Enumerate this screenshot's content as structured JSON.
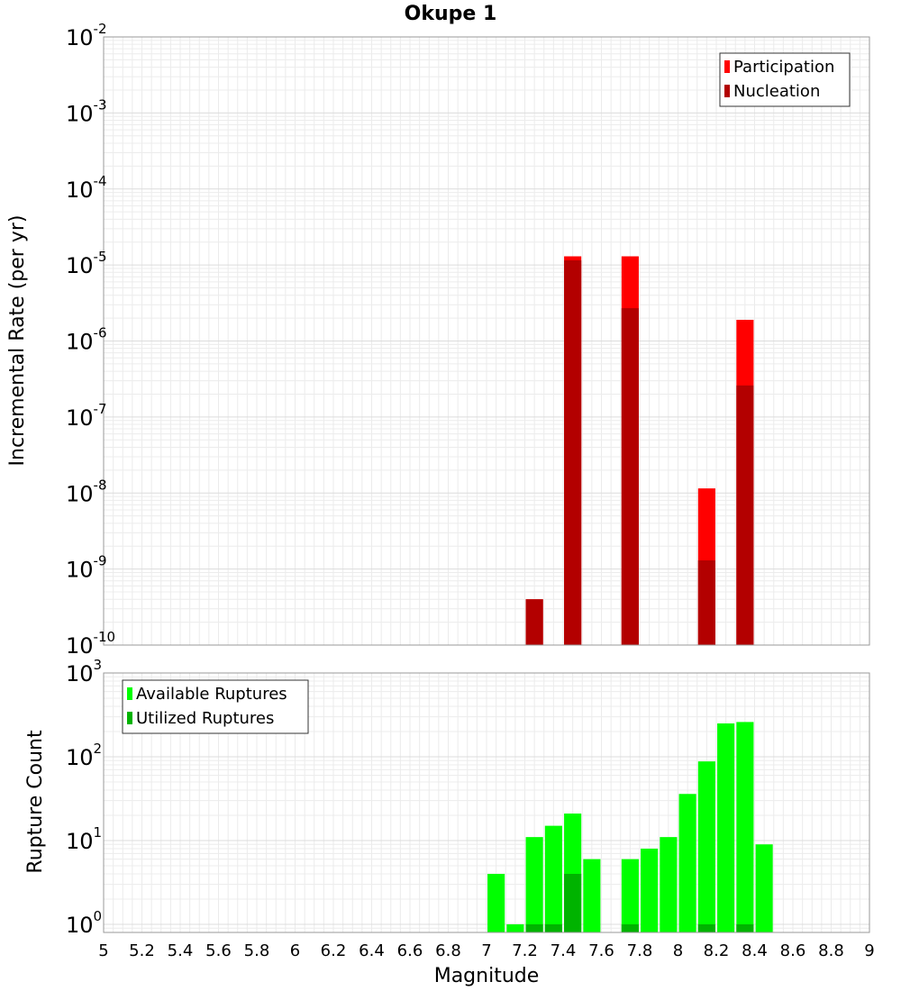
{
  "chart_data": [
    {
      "type": "bar",
      "title": "Okupe 1",
      "xlabel": "Magnitude",
      "ylabel": "Incremental Rate (per yr)",
      "yscale": "log",
      "xlim": [
        5,
        9
      ],
      "ylim": [
        1e-10,
        0.01
      ],
      "ytick_labels": [
        "10-10",
        "10-9",
        "10-8",
        "10-7",
        "10-6",
        "10-5",
        "10-4",
        "10-3",
        "10-2"
      ],
      "grid": true,
      "legend_position": "top-right",
      "bar_width": 0.09,
      "series": [
        {
          "name": "Participation",
          "color": "#ff0000",
          "points": [
            {
              "x": 7.25,
              "y": 4e-10
            },
            {
              "x": 7.45,
              "y": 1.3e-05
            },
            {
              "x": 7.75,
              "y": 1.3e-05
            },
            {
              "x": 8.15,
              "y": 1.15e-08
            },
            {
              "x": 8.35,
              "y": 1.9e-06
            }
          ]
        },
        {
          "name": "Nucleation",
          "color": "#b30000",
          "points": [
            {
              "x": 7.25,
              "y": 4e-10
            },
            {
              "x": 7.45,
              "y": 1.15e-05
            },
            {
              "x": 7.75,
              "y": 2.7e-06
            },
            {
              "x": 8.15,
              "y": 1.3e-09
            },
            {
              "x": 8.35,
              "y": 2.6e-07
            }
          ]
        }
      ]
    },
    {
      "type": "bar",
      "title": "",
      "xlabel": "Magnitude",
      "ylabel": "Rupture Count",
      "yscale": "log",
      "xlim": [
        5,
        9
      ],
      "ylim": [
        0.8,
        1000
      ],
      "ytick_labels": [
        "100",
        "101",
        "102",
        "103"
      ],
      "xticks": [
        "5",
        "5.2",
        "5.4",
        "5.6",
        "5.8",
        "6",
        "6.2",
        "6.4",
        "6.6",
        "6.8",
        "7",
        "7.2",
        "7.4",
        "7.6",
        "7.8",
        "8",
        "8.2",
        "8.4",
        "8.6",
        "8.8",
        "9"
      ],
      "grid": true,
      "legend_position": "top-left",
      "bar_width": 0.09,
      "series": [
        {
          "name": "Available Ruptures",
          "color": "#00ff00",
          "points": [
            {
              "x": 7.05,
              "y": 4
            },
            {
              "x": 7.15,
              "y": 1
            },
            {
              "x": 7.25,
              "y": 11
            },
            {
              "x": 7.35,
              "y": 15
            },
            {
              "x": 7.45,
              "y": 21
            },
            {
              "x": 7.55,
              "y": 6
            },
            {
              "x": 7.75,
              "y": 6
            },
            {
              "x": 7.85,
              "y": 8
            },
            {
              "x": 7.95,
              "y": 11
            },
            {
              "x": 8.05,
              "y": 36
            },
            {
              "x": 8.15,
              "y": 88
            },
            {
              "x": 8.25,
              "y": 250
            },
            {
              "x": 8.35,
              "y": 260
            },
            {
              "x": 8.45,
              "y": 9
            }
          ]
        },
        {
          "name": "Utilized Ruptures",
          "color": "#00b300",
          "points": [
            {
              "x": 7.25,
              "y": 1
            },
            {
              "x": 7.35,
              "y": 1
            },
            {
              "x": 7.45,
              "y": 4
            },
            {
              "x": 7.75,
              "y": 1
            },
            {
              "x": 8.15,
              "y": 1
            },
            {
              "x": 8.35,
              "y": 1
            }
          ]
        }
      ]
    }
  ]
}
